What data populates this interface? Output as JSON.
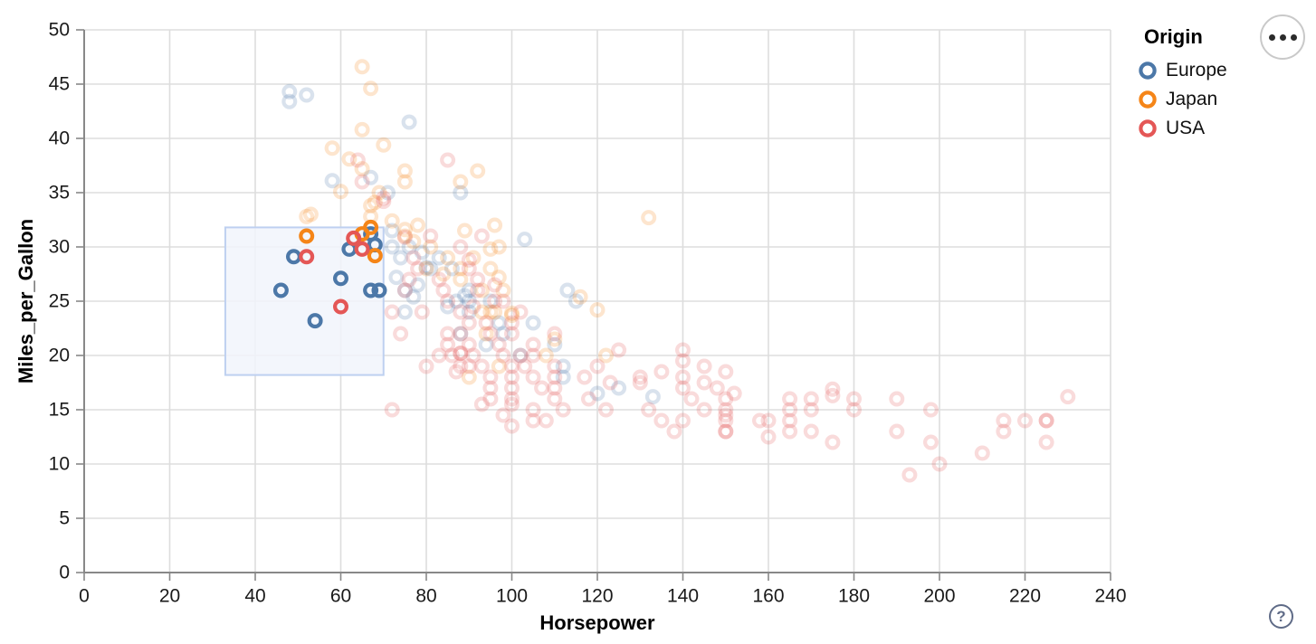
{
  "chart_data": {
    "type": "scatter",
    "title": "",
    "xlabel": "Horsepower",
    "ylabel": "Miles_per_Gallon",
    "xlim": [
      0,
      240
    ],
    "ylim": [
      0,
      50
    ],
    "xticks": [
      0,
      20,
      40,
      60,
      80,
      100,
      120,
      140,
      160,
      180,
      200,
      220,
      240
    ],
    "yticks": [
      0,
      5,
      10,
      15,
      20,
      25,
      30,
      35,
      40,
      45,
      50
    ],
    "grid": true,
    "legend": {
      "title": "Origin",
      "position": "top-right",
      "entries": [
        {
          "label": "Europe",
          "color": "#4c78a8"
        },
        {
          "label": "Japan",
          "color": "#f58518"
        },
        {
          "label": "USA",
          "color": "#e45756"
        }
      ]
    },
    "brush": {
      "x_range": [
        33,
        70
      ],
      "y_range": [
        18.2,
        31.8
      ],
      "fill": "#f1f5fc",
      "stroke": "#bed0f0"
    },
    "style": {
      "unselected_opacity": 0.21,
      "point_radius": 6.4,
      "point_stroke_width": 4.2,
      "gridline_color": "#dddddd",
      "axis_color": "#888888",
      "label_color": "#1a1a1a"
    },
    "series": [
      {
        "name": "Europe",
        "color": "#4c78a8",
        "selected": [
          [
            67,
            31.2
          ],
          [
            62,
            29.8
          ],
          [
            68,
            30.2
          ],
          [
            49,
            29.1
          ],
          [
            60,
            27.1
          ],
          [
            46,
            26
          ],
          [
            67,
            26
          ],
          [
            69,
            26
          ],
          [
            54,
            23.2
          ]
        ],
        "unselected": [
          [
            48,
            43.4
          ],
          [
            48,
            44.3
          ],
          [
            52,
            44
          ],
          [
            76,
            41.5
          ],
          [
            67,
            36.4
          ],
          [
            58,
            36.1
          ],
          [
            71,
            35
          ],
          [
            88,
            35
          ],
          [
            72,
            31.5
          ],
          [
            103,
            30.7
          ],
          [
            76,
            30
          ],
          [
            72,
            30
          ],
          [
            79,
            29.5
          ],
          [
            83,
            29
          ],
          [
            74,
            29
          ],
          [
            81,
            28
          ],
          [
            86,
            28
          ],
          [
            80,
            28.1
          ],
          [
            73,
            27.2
          ],
          [
            78,
            26.5
          ],
          [
            75,
            26
          ],
          [
            90,
            26
          ],
          [
            113,
            26
          ],
          [
            89,
            25.5
          ],
          [
            87,
            25
          ],
          [
            90,
            25
          ],
          [
            95,
            25
          ],
          [
            115,
            25
          ],
          [
            77,
            25.4
          ],
          [
            85,
            24.5
          ],
          [
            75,
            24
          ],
          [
            90,
            24
          ],
          [
            97,
            23
          ],
          [
            105,
            23
          ],
          [
            98,
            22
          ],
          [
            88,
            22
          ],
          [
            94,
            21
          ],
          [
            110,
            21
          ],
          [
            102,
            20
          ],
          [
            112,
            19
          ],
          [
            112,
            18
          ],
          [
            125,
            17
          ],
          [
            120,
            16.5
          ],
          [
            133,
            16.2
          ]
        ]
      },
      {
        "name": "Japan",
        "color": "#f58518",
        "selected": [
          [
            52,
            31
          ],
          [
            65,
            31.2
          ],
          [
            67,
            31.8
          ],
          [
            68,
            29.2
          ]
        ],
        "unselected": [
          [
            65,
            46.6
          ],
          [
            67,
            44.6
          ],
          [
            65,
            40.8
          ],
          [
            70,
            39.4
          ],
          [
            58,
            39.1
          ],
          [
            62,
            38.1
          ],
          [
            65,
            37.2
          ],
          [
            92,
            37
          ],
          [
            75,
            37
          ],
          [
            88,
            36
          ],
          [
            75,
            36
          ],
          [
            60,
            35.1
          ],
          [
            69,
            35
          ],
          [
            68,
            34.1
          ],
          [
            67,
            33.8
          ],
          [
            53,
            33
          ],
          [
            67,
            32.8
          ],
          [
            52,
            32.8
          ],
          [
            96,
            32
          ],
          [
            72,
            32.4
          ],
          [
            132,
            32.7
          ],
          [
            78,
            32
          ],
          [
            75,
            31.6
          ],
          [
            89,
            31.5
          ],
          [
            75,
            31
          ],
          [
            81,
            30
          ],
          [
            77,
            30.5
          ],
          [
            97,
            30
          ],
          [
            95,
            29.8
          ],
          [
            91,
            29
          ],
          [
            85,
            29
          ],
          [
            88,
            28
          ],
          [
            80,
            28
          ],
          [
            95,
            28
          ],
          [
            84,
            27.5
          ],
          [
            88,
            27
          ],
          [
            97,
            27.2
          ],
          [
            93,
            26
          ],
          [
            98,
            26
          ],
          [
            116,
            25.4
          ],
          [
            96,
            24
          ],
          [
            95,
            24
          ],
          [
            93,
            24
          ],
          [
            120,
            24.2
          ],
          [
            100,
            23.9
          ],
          [
            100,
            23.7
          ],
          [
            94,
            22
          ],
          [
            110,
            21.5
          ],
          [
            122,
            20
          ],
          [
            108,
            20
          ],
          [
            97,
            19
          ],
          [
            90,
            18
          ]
        ]
      },
      {
        "name": "USA",
        "color": "#e45756",
        "selected": [
          [
            63,
            30.8
          ],
          [
            65,
            29.8
          ],
          [
            52,
            29.1
          ],
          [
            60,
            24.5
          ]
        ],
        "unselected": [
          [
            85,
            38
          ],
          [
            64,
            38
          ],
          [
            65,
            36
          ],
          [
            70,
            34.5
          ],
          [
            70,
            34.2
          ],
          [
            75,
            30.9
          ],
          [
            81,
            31
          ],
          [
            93,
            31
          ],
          [
            77,
            29
          ],
          [
            90,
            28.8
          ],
          [
            90,
            28
          ],
          [
            88,
            30
          ],
          [
            78,
            28
          ],
          [
            76,
            27
          ],
          [
            92,
            27
          ],
          [
            83,
            27
          ],
          [
            96,
            26.5
          ],
          [
            75,
            26
          ],
          [
            84,
            26
          ],
          [
            92,
            26
          ],
          [
            85,
            25
          ],
          [
            96,
            25
          ],
          [
            98,
            25
          ],
          [
            102,
            24
          ],
          [
            91,
            24.5
          ],
          [
            72,
            24
          ],
          [
            79,
            24
          ],
          [
            88,
            24
          ],
          [
            100,
            23
          ],
          [
            90,
            23
          ],
          [
            94,
            23
          ],
          [
            85,
            22
          ],
          [
            95,
            22
          ],
          [
            100,
            22
          ],
          [
            88,
            22
          ],
          [
            74,
            22
          ],
          [
            110,
            22
          ],
          [
            105,
            21
          ],
          [
            85,
            21
          ],
          [
            90,
            21
          ],
          [
            97,
            21
          ],
          [
            88,
            20.2
          ],
          [
            88,
            20.2
          ],
          [
            86,
            20
          ],
          [
            83,
            20
          ],
          [
            91,
            20
          ],
          [
            98,
            20
          ],
          [
            102,
            20
          ],
          [
            105,
            20
          ],
          [
            125,
            20.5
          ],
          [
            140,
            20.5
          ],
          [
            80,
            19
          ],
          [
            90,
            19
          ],
          [
            88,
            19
          ],
          [
            93,
            19
          ],
          [
            100,
            19
          ],
          [
            103,
            19
          ],
          [
            110,
            19
          ],
          [
            120,
            19
          ],
          [
            145,
            19
          ],
          [
            140,
            19.5
          ],
          [
            87,
            18.5
          ],
          [
            95,
            18
          ],
          [
            100,
            18
          ],
          [
            105,
            18
          ],
          [
            110,
            18
          ],
          [
            117,
            18
          ],
          [
            130,
            18
          ],
          [
            135,
            18.5
          ],
          [
            140,
            18
          ],
          [
            150,
            18.5
          ],
          [
            95,
            17
          ],
          [
            100,
            17
          ],
          [
            107,
            17
          ],
          [
            110,
            17
          ],
          [
            123,
            17.5
          ],
          [
            130,
            17.5
          ],
          [
            140,
            17
          ],
          [
            145,
            17.5
          ],
          [
            148,
            17
          ],
          [
            170,
            16
          ],
          [
            175,
            16.9
          ],
          [
            175,
            16.3
          ],
          [
            180,
            16
          ],
          [
            190,
            16
          ],
          [
            230,
            16.2
          ],
          [
            95,
            16
          ],
          [
            100,
            16
          ],
          [
            110,
            16
          ],
          [
            118,
            16
          ],
          [
            142,
            16
          ],
          [
            150,
            16
          ],
          [
            152,
            16.5
          ],
          [
            165,
            16
          ],
          [
            100,
            15.5
          ],
          [
            93,
            15.5
          ],
          [
            105,
            15
          ],
          [
            112,
            15
          ],
          [
            122,
            15
          ],
          [
            132,
            15
          ],
          [
            145,
            15
          ],
          [
            150,
            15
          ],
          [
            165,
            15
          ],
          [
            170,
            15
          ],
          [
            180,
            15
          ],
          [
            198,
            15
          ],
          [
            72,
            15
          ],
          [
            100,
            13.5
          ],
          [
            105,
            14
          ],
          [
            108,
            14
          ],
          [
            98,
            14.5
          ],
          [
            135,
            14
          ],
          [
            140,
            14
          ],
          [
            150,
            14.5
          ],
          [
            150,
            14
          ],
          [
            158,
            14
          ],
          [
            160,
            14
          ],
          [
            165,
            14
          ],
          [
            215,
            14
          ],
          [
            220,
            14
          ],
          [
            225,
            14
          ],
          [
            225,
            14
          ],
          [
            150,
            13
          ],
          [
            150,
            13
          ],
          [
            138,
            13
          ],
          [
            165,
            13
          ],
          [
            170,
            13
          ],
          [
            190,
            13
          ],
          [
            215,
            13
          ],
          [
            160,
            12.5
          ],
          [
            175,
            12
          ],
          [
            198,
            12
          ],
          [
            225,
            12
          ],
          [
            210,
            11
          ],
          [
            200,
            10
          ],
          [
            193,
            9
          ]
        ]
      }
    ]
  },
  "controls": {
    "menu_tooltip": "options",
    "help_icon": "?"
  }
}
